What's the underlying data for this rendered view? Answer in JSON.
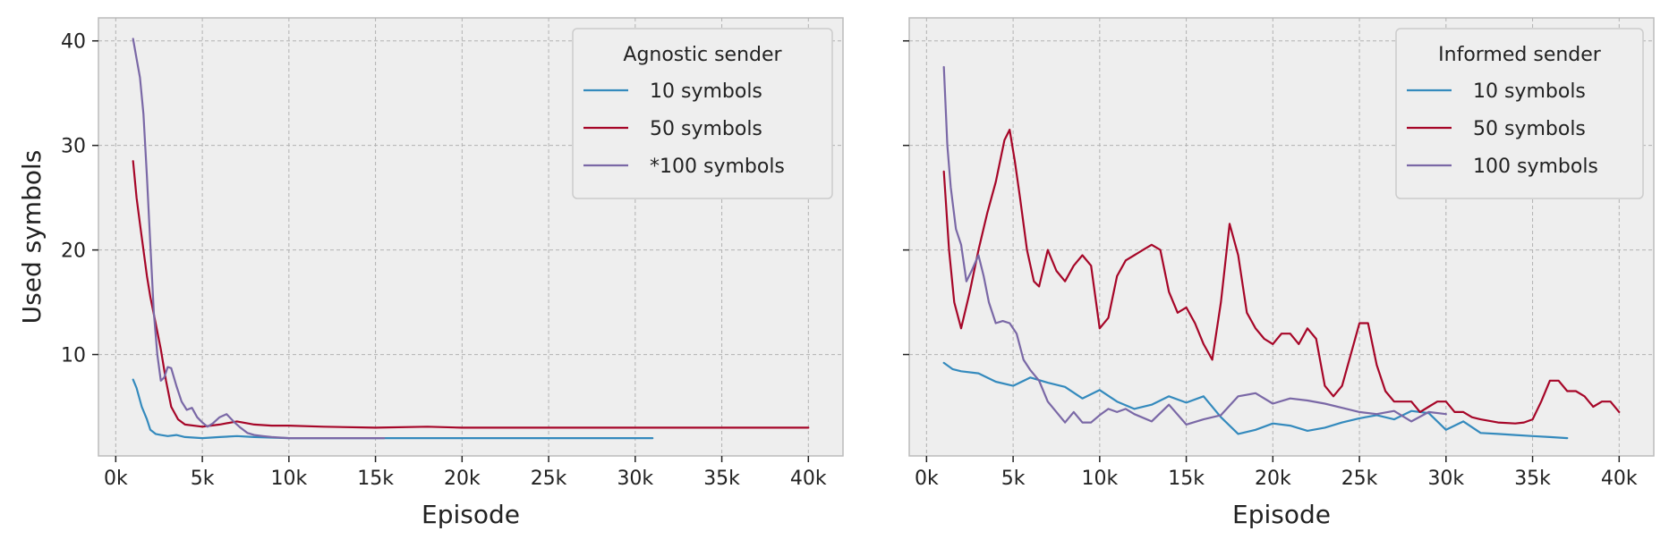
{
  "chart_data": [
    {
      "type": "line",
      "legend_title": "Agnostic sender",
      "legend_position": "top-right",
      "xlabel": "Episode",
      "ylabel": "Used symbols",
      "xlim": [
        -1000,
        42000
      ],
      "ylim": [
        0.3,
        42.2
      ],
      "x_ticks": [
        0,
        5000,
        10000,
        15000,
        20000,
        25000,
        30000,
        35000,
        40000
      ],
      "x_tick_labels": [
        "0k",
        "5k",
        "10k",
        "15k",
        "20k",
        "25k",
        "30k",
        "35k",
        "40k"
      ],
      "y_ticks": [
        10,
        20,
        30,
        40
      ],
      "y_tick_labels": [
        "10",
        "20",
        "30",
        "40"
      ],
      "grid": true,
      "series": [
        {
          "name": "10 symbols",
          "color": "#348abd",
          "x": [
            1000,
            1200,
            1500,
            1800,
            2000,
            2300,
            2600,
            3000,
            3500,
            4000,
            5000,
            6000,
            7000,
            8000,
            10000,
            15000,
            20000,
            25000,
            31000
          ],
          "y": [
            7.6,
            6.8,
            5.0,
            3.8,
            2.8,
            2.4,
            2.3,
            2.2,
            2.3,
            2.1,
            2.0,
            2.1,
            2.2,
            2.1,
            2.0,
            2.0,
            2.0,
            2.0,
            2.0
          ]
        },
        {
          "name": "50 symbols",
          "color": "#a60628",
          "x": [
            1000,
            1200,
            1400,
            1600,
            1800,
            2000,
            2300,
            2600,
            2900,
            3200,
            3600,
            4000,
            5000,
            6000,
            7000,
            8000,
            9000,
            10000,
            12000,
            15000,
            18000,
            20000,
            25000,
            30000,
            35000,
            40000
          ],
          "y": [
            28.5,
            25.0,
            22.5,
            20.0,
            17.5,
            15.5,
            13.0,
            10.5,
            7.5,
            5.0,
            3.8,
            3.3,
            3.1,
            3.3,
            3.6,
            3.3,
            3.2,
            3.2,
            3.1,
            3.0,
            3.1,
            3.0,
            3.0,
            3.0,
            3.0,
            3.0
          ]
        },
        {
          "name": "*100 symbols",
          "color": "#7a68a6",
          "x": [
            1000,
            1200,
            1400,
            1600,
            1800,
            2000,
            2200,
            2400,
            2600,
            2800,
            3000,
            3200,
            3500,
            3800,
            4100,
            4400,
            4700,
            5000,
            5300,
            5600,
            6000,
            6400,
            6800,
            7200,
            7600,
            8000,
            8500,
            9000,
            10000,
            12000,
            15500
          ],
          "y": [
            40.2,
            38.3,
            36.5,
            33.0,
            27.0,
            20.5,
            14.0,
            10.0,
            7.5,
            7.8,
            8.8,
            8.7,
            7.0,
            5.5,
            4.7,
            4.9,
            4.0,
            3.5,
            3.1,
            3.4,
            4.0,
            4.3,
            3.6,
            3.0,
            2.5,
            2.3,
            2.2,
            2.1,
            2.0,
            2.0,
            2.0
          ]
        }
      ]
    },
    {
      "type": "line",
      "legend_title": "Informed sender",
      "legend_position": "top-right",
      "xlabel": "Episode",
      "ylabel": "",
      "xlim": [
        -1000,
        42000
      ],
      "ylim": [
        0.3,
        42.2
      ],
      "x_ticks": [
        0,
        5000,
        10000,
        15000,
        20000,
        25000,
        30000,
        35000,
        40000
      ],
      "x_tick_labels": [
        "0k",
        "5k",
        "10k",
        "15k",
        "20k",
        "25k",
        "30k",
        "35k",
        "40k"
      ],
      "y_ticks": [
        10,
        20,
        30,
        40
      ],
      "y_tick_labels": [
        "",
        "",
        "",
        ""
      ],
      "grid": true,
      "series": [
        {
          "name": "10 symbols",
          "color": "#348abd",
          "x": [
            1000,
            1500,
            2000,
            3000,
            4000,
            5000,
            6000,
            7000,
            8000,
            9000,
            10000,
            11000,
            12000,
            13000,
            14000,
            15000,
            16000,
            17000,
            18000,
            19000,
            20000,
            21000,
            22000,
            23000,
            24000,
            25000,
            26000,
            27000,
            28000,
            29000,
            30000,
            31000,
            32000,
            33000,
            34000,
            35000,
            36000,
            37000
          ],
          "y": [
            9.2,
            8.6,
            8.4,
            8.2,
            7.4,
            7.0,
            7.8,
            7.3,
            6.9,
            5.8,
            6.6,
            5.5,
            4.8,
            5.2,
            6.0,
            5.4,
            6.0,
            4.0,
            2.4,
            2.8,
            3.4,
            3.2,
            2.7,
            3.0,
            3.5,
            3.9,
            4.2,
            3.8,
            4.6,
            4.4,
            2.8,
            3.6,
            2.5,
            2.4,
            2.3,
            2.2,
            2.1,
            2.0
          ]
        },
        {
          "name": "50 symbols",
          "color": "#a60628",
          "x": [
            1000,
            1300,
            1600,
            2000,
            2500,
            3000,
            3500,
            4000,
            4500,
            4800,
            5100,
            5400,
            5800,
            6200,
            6500,
            7000,
            7500,
            8000,
            8500,
            9000,
            9500,
            10000,
            10500,
            11000,
            11500,
            12000,
            12500,
            13000,
            13500,
            14000,
            14500,
            15000,
            15500,
            16000,
            16500,
            17000,
            17500,
            18000,
            18500,
            19000,
            19500,
            20000,
            20500,
            21000,
            21500,
            22000,
            22500,
            23000,
            23500,
            24000,
            24500,
            25000,
            25500,
            26000,
            26500,
            27000,
            27500,
            28000,
            28500,
            29000,
            29500,
            30000,
            30500,
            31000,
            31500,
            32000,
            33000,
            34000,
            34500,
            35000,
            35500,
            36000,
            36500,
            37000,
            37500,
            38000,
            38500,
            39000,
            39500,
            40000
          ],
          "y": [
            27.5,
            20.0,
            15.0,
            12.5,
            16.0,
            20.0,
            23.5,
            26.5,
            30.5,
            31.5,
            28.5,
            25.0,
            20.0,
            17.0,
            16.5,
            20.0,
            18.0,
            17.0,
            18.5,
            19.5,
            18.5,
            12.5,
            13.5,
            17.5,
            19.0,
            19.5,
            20.0,
            20.5,
            20.0,
            16.0,
            14.0,
            14.5,
            13.0,
            11.0,
            9.5,
            15.0,
            22.5,
            19.5,
            14.0,
            12.5,
            11.5,
            11.0,
            12.0,
            12.0,
            11.0,
            12.5,
            11.5,
            7.0,
            6.0,
            7.0,
            10.0,
            13.0,
            13.0,
            9.0,
            6.5,
            5.5,
            5.5,
            5.5,
            4.5,
            5.0,
            5.5,
            5.5,
            4.5,
            4.5,
            4.0,
            3.8,
            3.5,
            3.4,
            3.5,
            3.8,
            5.5,
            7.5,
            7.5,
            6.5,
            6.5,
            6.0,
            5.0,
            5.5,
            5.5,
            4.5
          ]
        },
        {
          "name": "100 symbols",
          "color": "#7a68a6",
          "x": [
            1000,
            1200,
            1400,
            1700,
            2000,
            2300,
            2600,
            3000,
            3300,
            3600,
            4000,
            4400,
            4800,
            5200,
            5600,
            6000,
            6500,
            7000,
            7500,
            8000,
            8500,
            9000,
            9500,
            10000,
            10500,
            11000,
            11500,
            12000,
            13000,
            14000,
            15000,
            16000,
            17000,
            18000,
            19000,
            20000,
            21000,
            22000,
            23000,
            24000,
            25000,
            26000,
            27000,
            28000,
            29000,
            30000
          ],
          "y": [
            37.5,
            30.0,
            26.0,
            22.0,
            20.5,
            17.0,
            18.0,
            19.5,
            17.5,
            15.0,
            13.0,
            13.2,
            13.0,
            12.0,
            9.5,
            8.5,
            7.5,
            5.5,
            4.5,
            3.5,
            4.5,
            3.5,
            3.5,
            4.2,
            4.8,
            4.5,
            4.8,
            4.3,
            3.6,
            5.2,
            3.3,
            3.8,
            4.2,
            6.0,
            6.3,
            5.3,
            5.8,
            5.6,
            5.3,
            4.9,
            4.5,
            4.3,
            4.6,
            3.6,
            4.5,
            4.3
          ]
        }
      ]
    }
  ]
}
